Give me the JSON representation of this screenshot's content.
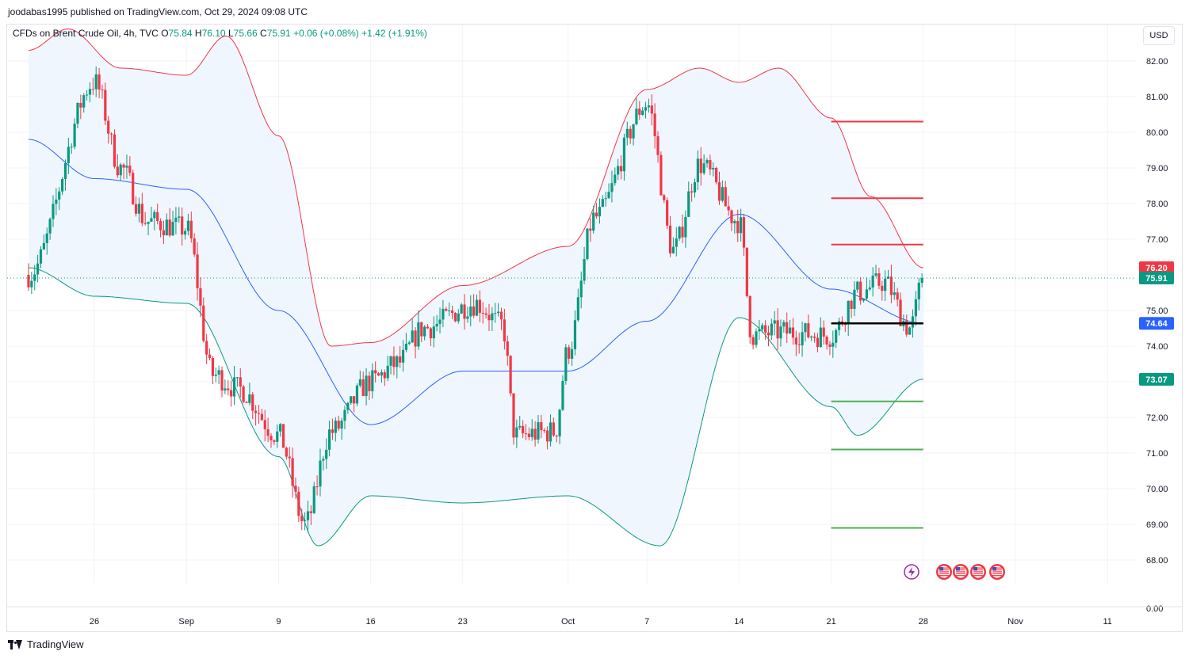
{
  "header": {
    "published": "joodabas1995 published on TradingView.com, Oct 29, 2024 09:08 UTC"
  },
  "legend": {
    "symbol": "CFDs on Brent Crude Oil, 4h, TVC",
    "open_label": "O",
    "open": "75.84",
    "high_label": "H",
    "high": "76.10",
    "low_label": "L",
    "low": "75.66",
    "close_label": "C",
    "close": "75.91",
    "change": "+0.06 (+0.08%)",
    "change2": "+1.42 (+1.91%)"
  },
  "currency": "USD",
  "footer": {
    "brand": "TradingView"
  },
  "colors": {
    "up": "#089981",
    "down": "#f23645",
    "upper_band": "#f23645",
    "lower_band": "#089981",
    "basis": "#2962ff",
    "band_fill": "#f0f6fd"
  },
  "chart_data": {
    "type": "candlestick",
    "title": "CFDs on Brent Crude Oil, 4h, TVC",
    "y_ticks": [
      "82.00",
      "81.00",
      "80.00",
      "79.00",
      "78.00",
      "77.00",
      "75.00",
      "74.00",
      "73.00",
      "72.00",
      "71.00",
      "70.00",
      "69.00",
      "68.00",
      "0.00"
    ],
    "x_ticks": [
      "26",
      "Sep",
      "9",
      "16",
      "23",
      "Oct",
      "7",
      "14",
      "21",
      "28",
      "Nov",
      "11"
    ],
    "price_labels": [
      {
        "text": "76.20",
        "color": "#f23645"
      },
      {
        "text": "75.91",
        "color": "#089981"
      },
      {
        "text": "74.64",
        "color": "#2962ff"
      },
      {
        "text": "73.07",
        "color": "#089981"
      }
    ],
    "last_price": 75.91,
    "anchors": [
      [
        "2024-08-21",
        76.0
      ],
      [
        "2024-08-26",
        81.4
      ],
      [
        "2024-08-28",
        79.0
      ],
      [
        "2024-08-30",
        77.5
      ],
      [
        "2024-09-02",
        77.3
      ],
      [
        "2024-09-04",
        73.2
      ],
      [
        "2024-09-06",
        72.8
      ],
      [
        "2024-09-09",
        71.5
      ],
      [
        "2024-09-11",
        69.0
      ],
      [
        "2024-09-13",
        71.6
      ],
      [
        "2024-09-16",
        73.0
      ],
      [
        "2024-09-18",
        73.5
      ],
      [
        "2024-09-20",
        74.5
      ],
      [
        "2024-09-24",
        75.2
      ],
      [
        "2024-09-26",
        74.6
      ],
      [
        "2024-09-27",
        71.5
      ],
      [
        "2024-09-30",
        71.6
      ],
      [
        "2024-10-01",
        73.9
      ],
      [
        "2024-10-03",
        77.6
      ],
      [
        "2024-10-07",
        80.8
      ],
      [
        "2024-10-09",
        76.7
      ],
      [
        "2024-10-11",
        79.1
      ],
      [
        "2024-10-14",
        77.5
      ],
      [
        "2024-10-15",
        74.3
      ],
      [
        "2024-10-17",
        74.4
      ],
      [
        "2024-10-21",
        74.3
      ],
      [
        "2024-10-23",
        75.5
      ],
      [
        "2024-10-25",
        75.8
      ],
      [
        "2024-10-27",
        74.5
      ],
      [
        "2024-10-28",
        75.91
      ]
    ],
    "bollinger_upper": [
      [
        "2024-08-21",
        82.3
      ],
      [
        "2024-08-24",
        82.9
      ],
      [
        "2024-08-28",
        81.8
      ],
      [
        "2024-09-02",
        81.6
      ],
      [
        "2024-09-05",
        82.7
      ],
      [
        "2024-09-09",
        79.9
      ],
      [
        "2024-09-13",
        74.0
      ],
      [
        "2024-09-16",
        74.1
      ],
      [
        "2024-09-23",
        75.7
      ],
      [
        "2024-10-01",
        76.8
      ],
      [
        "2024-10-07",
        81.2
      ],
      [
        "2024-10-11",
        81.8
      ],
      [
        "2024-10-14",
        81.4
      ],
      [
        "2024-10-17",
        81.8
      ],
      [
        "2024-10-21",
        80.4
      ],
      [
        "2024-10-24",
        78.2
      ],
      [
        "2024-10-28",
        76.2
      ]
    ],
    "bollinger_basis": [
      [
        "2024-08-21",
        79.8
      ],
      [
        "2024-08-26",
        78.7
      ],
      [
        "2024-09-02",
        78.4
      ],
      [
        "2024-09-09",
        75.0
      ],
      [
        "2024-09-16",
        71.8
      ],
      [
        "2024-09-23",
        73.3
      ],
      [
        "2024-10-01",
        73.3
      ],
      [
        "2024-10-07",
        74.7
      ],
      [
        "2024-10-14",
        77.7
      ],
      [
        "2024-10-21",
        75.6
      ],
      [
        "2024-10-28",
        74.64
      ]
    ],
    "bollinger_lower": [
      [
        "2024-08-21",
        76.2
      ],
      [
        "2024-08-26",
        75.4
      ],
      [
        "2024-09-02",
        75.2
      ],
      [
        "2024-09-09",
        70.9
      ],
      [
        "2024-09-12",
        68.4
      ],
      [
        "2024-09-16",
        69.8
      ],
      [
        "2024-09-23",
        69.6
      ],
      [
        "2024-10-01",
        69.8
      ],
      [
        "2024-10-08",
        68.4
      ],
      [
        "2024-10-14",
        74.8
      ],
      [
        "2024-10-21",
        72.3
      ],
      [
        "2024-10-23",
        71.5
      ],
      [
        "2024-10-28",
        73.07
      ]
    ],
    "horizontal_levels": [
      {
        "price": 80.3,
        "color": "#f23645",
        "from": "2024-10-21",
        "to": "2024-10-28"
      },
      {
        "price": 78.15,
        "color": "#f23645",
        "from": "2024-10-21",
        "to": "2024-10-28"
      },
      {
        "price": 76.85,
        "color": "#f23645",
        "from": "2024-10-21",
        "to": "2024-10-28"
      },
      {
        "price": 74.64,
        "color": "#000000",
        "from": "2024-10-21",
        "to": "2024-10-28"
      },
      {
        "price": 72.45,
        "color": "#4caf50",
        "from": "2024-10-21",
        "to": "2024-10-28"
      },
      {
        "price": 71.1,
        "color": "#4caf50",
        "from": "2024-10-21",
        "to": "2024-10-28"
      },
      {
        "price": 68.9,
        "color": "#4caf50",
        "from": "2024-10-21",
        "to": "2024-10-28"
      }
    ],
    "event_icons": [
      "lightning-icon",
      "us-flag-icon",
      "us-flag-icon",
      "us-flag-icon",
      "us-flag-icon"
    ]
  }
}
